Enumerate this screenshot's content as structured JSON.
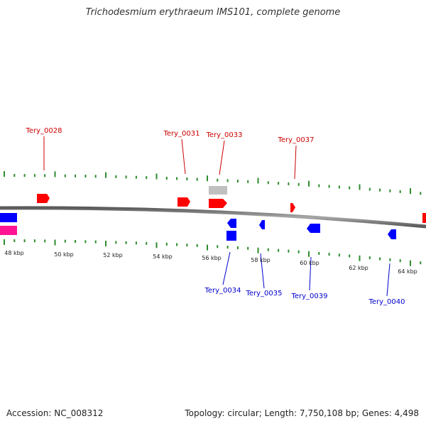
{
  "title": "Trichodesmium erythraeum IMS101, complete genome",
  "footer": {
    "accession": "Accession: NC_008312",
    "summary": "Topology: circular; Length: 7,750,108 bp; Genes: 4,498"
  },
  "colors": {
    "forward_gene": "#ff0000",
    "reverse_gene": "#0000ff",
    "other_feature": "#c0c0c0",
    "rna_feature": "#ff1493",
    "forward_label": "#cc0000",
    "reverse_label": "#0000cc",
    "tick": "#2e8b2e",
    "backbone": "#808080"
  },
  "kbp_labels": [
    "48 kbp",
    "50 kbp",
    "52 kbp",
    "54 kbp",
    "56 kbp",
    "58 kbp",
    "60 kbp",
    "62 kbp",
    "64 kbp"
  ],
  "forward_labels": [
    "Tery_0028",
    "Tery_0031",
    "Tery_0033",
    "Tery_0037"
  ],
  "reverse_labels": [
    "Tery_0034",
    "Tery_0035",
    "Tery_0039",
    "Tery_0040"
  ]
}
